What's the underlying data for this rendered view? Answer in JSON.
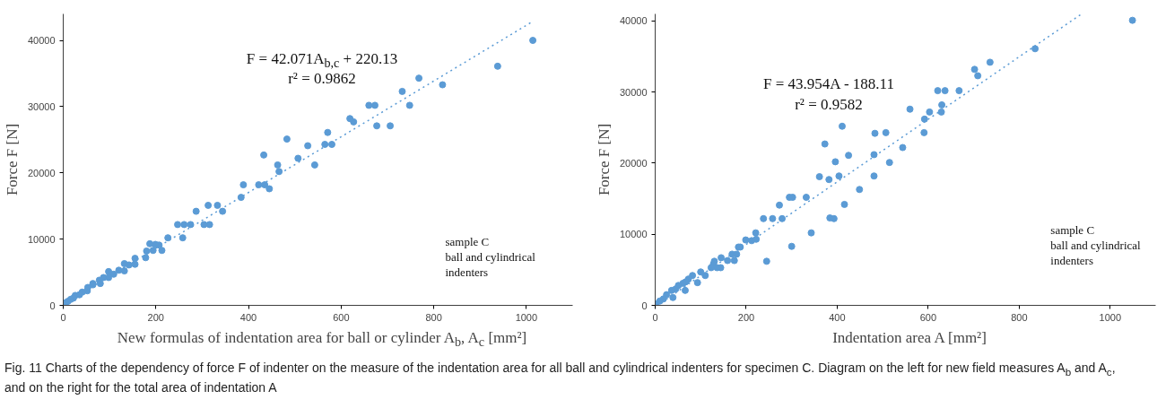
{
  "chart_data": [
    {
      "type": "scatter",
      "xlabel": "New formulas of indentation area for ball or cylinder A$_{b}$, A$_{c}$ [mm²]",
      "ylabel": "Force F [N]",
      "xlim": [
        0,
        1100
      ],
      "ylim": [
        0,
        44000
      ],
      "xticks": [
        0,
        200,
        400,
        600,
        800,
        1000
      ],
      "yticks": [
        0,
        10000,
        20000,
        30000,
        40000
      ],
      "grid": false,
      "annotations": [
        "F = 42.071A$_{b,c}$ + 220.13",
        "r² = 0.9862",
        "sample C\nball and cylindrical\nindenters"
      ],
      "series": [
        {
          "color": "#5b9bd5",
          "marker": "circle",
          "x": [
            1014,
            938,
            819,
            768,
            732,
            748,
            673,
            660,
            706,
            677,
            627,
            619,
            571,
            580,
            565,
            528,
            483,
            543,
            507,
            463,
            466,
            433,
            435,
            422,
            445,
            389,
            384,
            344,
            287,
            333,
            313,
            316,
            304,
            275,
            261,
            247,
            258,
            226,
            213,
            207,
            199,
            194,
            187,
            180,
            178,
            155,
            155,
            142,
            132,
            132,
            120,
            109,
            98,
            98,
            87,
            78,
            80,
            64,
            64,
            53,
            52,
            41,
            35,
            26,
            22,
            16,
            10,
            5
          ],
          "values": [
            40000,
            36100,
            33300,
            34300,
            32300,
            30200,
            30200,
            30200,
            27100,
            27100,
            27700,
            28200,
            26100,
            24300,
            24300,
            24100,
            25100,
            21200,
            22200,
            21200,
            20200,
            22700,
            18200,
            18200,
            17600,
            18200,
            16300,
            14200,
            14200,
            15100,
            15100,
            12200,
            12200,
            12200,
            12200,
            12200,
            10200,
            10200,
            8300,
            9100,
            9200,
            8300,
            9300,
            8200,
            7200,
            7100,
            6200,
            6100,
            6300,
            5200,
            5300,
            4700,
            5100,
            4200,
            4200,
            3800,
            3300,
            3300,
            3100,
            2700,
            2200,
            2000,
            1600,
            1500,
            1100,
            900,
            600,
            400
          ]
        },
        {
          "type": "line",
          "color": "#5b9bd5",
          "line_style": "dotted",
          "x": [
            0,
            1010
          ],
          "values": [
            200,
            42700
          ]
        }
      ]
    },
    {
      "type": "scatter",
      "xlabel": "Indentation area A [mm²]",
      "ylabel": "Force F [N]",
      "xlim": [
        0,
        1100
      ],
      "ylim": [
        0,
        41000
      ],
      "xticks": [
        0,
        200,
        400,
        600,
        800,
        1000
      ],
      "yticks": [
        0,
        10000,
        20000,
        30000,
        40000
      ],
      "grid": false,
      "annotations": [
        "F = 43.954A - 188.11",
        "r² = 0.9582",
        "sample C\nball and cylindrical\nindenters",
        "Fig. 11  Charts of the dependency of force F of indenter on the measure of the indentation area for all ball and cylindrical indenters for specimen C. Diagram on the left for new field measures A$_{b}$ and A$_{c}$, and on the right for the total area of indentation A"
      ],
      "series": [
        {
          "color": "#5b9bd5",
          "marker": "circle",
          "x": [
            1049,
            835,
            736,
            702,
            709,
            621,
            637,
            668,
            560,
            603,
            630,
            629,
            592,
            591,
            544,
            507,
            483,
            411,
            373,
            425,
            481,
            396,
            515,
            361,
            382,
            404,
            481,
            449,
            416,
            332,
            295,
            302,
            273,
            238,
            258,
            279,
            384,
            393,
            343,
            300,
            245,
            221,
            222,
            212,
            199,
            187,
            183,
            179,
            169,
            174,
            159,
            145,
            144,
            136,
            130,
            128,
            123,
            110,
            100,
            93,
            82,
            73,
            67,
            66,
            61,
            51,
            45,
            39,
            36,
            25,
            18,
            10,
            1
          ],
          "values": [
            40100,
            36100,
            34200,
            33200,
            32300,
            30200,
            30200,
            30200,
            27600,
            27200,
            28200,
            27200,
            26200,
            24300,
            22200,
            24300,
            24200,
            25200,
            22700,
            21100,
            21200,
            20200,
            20100,
            18100,
            17700,
            18200,
            18200,
            16300,
            14200,
            15200,
            15200,
            15200,
            14100,
            12200,
            12200,
            12200,
            12300,
            12200,
            10200,
            8300,
            6200,
            10200,
            9300,
            9100,
            9200,
            8200,
            8200,
            7200,
            7200,
            6300,
            6300,
            6700,
            5300,
            5300,
            6200,
            5800,
            5300,
            4200,
            4700,
            3200,
            4200,
            3700,
            3300,
            2100,
            3100,
            2800,
            2300,
            1100,
            2100,
            1500,
            900,
            600,
            200
          ]
        },
        {
          "type": "line",
          "color": "#5b9bd5",
          "line_style": "dotted",
          "x": [
            5,
            935
          ],
          "values": [
            0,
            40900
          ]
        }
      ]
    }
  ]
}
